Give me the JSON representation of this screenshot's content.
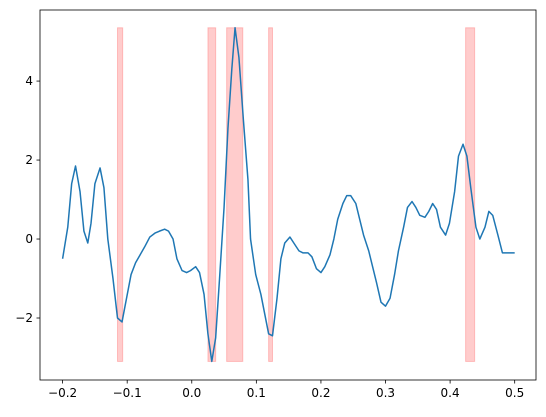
{
  "chart_data": {
    "type": "line",
    "x": [
      -0.2,
      -0.192,
      -0.186,
      -0.18,
      -0.173,
      -0.167,
      -0.161,
      -0.156,
      -0.15,
      -0.142,
      -0.136,
      -0.13,
      -0.122,
      -0.115,
      -0.108,
      -0.101,
      -0.094,
      -0.087,
      -0.08,
      -0.073,
      -0.065,
      -0.057,
      -0.05,
      -0.042,
      -0.036,
      -0.029,
      -0.023,
      -0.015,
      -0.008,
      -0.002,
      0.006,
      0.012,
      0.019,
      0.025,
      0.031,
      0.037,
      0.043,
      0.05,
      0.056,
      0.062,
      0.067,
      0.073,
      0.08,
      0.087,
      0.091,
      0.099,
      0.107,
      0.113,
      0.119,
      0.125,
      0.132,
      0.138,
      0.144,
      0.152,
      0.158,
      0.166,
      0.172,
      0.18,
      0.186,
      0.193,
      0.2,
      0.206,
      0.214,
      0.22,
      0.226,
      0.234,
      0.24,
      0.246,
      0.254,
      0.26,
      0.266,
      0.274,
      0.28,
      0.286,
      0.293,
      0.3,
      0.307,
      0.314,
      0.32,
      0.328,
      0.334,
      0.341,
      0.347,
      0.353,
      0.361,
      0.367,
      0.373,
      0.379,
      0.385,
      0.393,
      0.399,
      0.407,
      0.413,
      0.42,
      0.426,
      0.432,
      0.44,
      0.446,
      0.454,
      0.46,
      0.466,
      0.474,
      0.481,
      0.488,
      0.5
    ],
    "series": [
      {
        "color": "#1f77b4",
        "values": [
          -0.5,
          0.3,
          1.4,
          1.85,
          1.2,
          0.2,
          -0.1,
          0.4,
          1.4,
          1.8,
          1.3,
          0.0,
          -1.0,
          -2.0,
          -2.1,
          -1.5,
          -0.9,
          -0.6,
          -0.4,
          -0.2,
          0.05,
          0.15,
          0.2,
          0.25,
          0.2,
          0.0,
          -0.5,
          -0.8,
          -0.85,
          -0.8,
          -0.7,
          -0.85,
          -1.4,
          -2.4,
          -3.1,
          -2.5,
          -1.0,
          0.8,
          2.8,
          4.3,
          5.35,
          4.6,
          3.0,
          1.5,
          0.0,
          -0.9,
          -1.4,
          -1.9,
          -2.4,
          -2.45,
          -1.5,
          -0.5,
          -0.1,
          0.05,
          -0.1,
          -0.3,
          -0.35,
          -0.35,
          -0.45,
          -0.75,
          -0.85,
          -0.7,
          -0.4,
          0.0,
          0.5,
          0.9,
          1.1,
          1.1,
          0.9,
          0.5,
          0.1,
          -0.3,
          -0.7,
          -1.1,
          -1.6,
          -1.7,
          -1.5,
          -0.9,
          -0.3,
          0.3,
          0.8,
          0.95,
          0.8,
          0.6,
          0.55,
          0.7,
          0.9,
          0.75,
          0.3,
          0.1,
          0.4,
          1.2,
          2.1,
          2.4,
          2.1,
          1.3,
          0.3,
          0.0,
          0.3,
          0.7,
          0.6,
          0.1,
          -0.35,
          -0.35,
          -0.35
        ]
      }
    ],
    "spans": [
      [
        -0.115,
        -0.107
      ],
      [
        0.025,
        0.037
      ],
      [
        0.054,
        0.079
      ],
      [
        0.119,
        0.125
      ],
      [
        0.424,
        0.438
      ]
    ],
    "span_color": "#ff0000",
    "xlim": [
      -0.235,
      0.533
    ],
    "ylim": [
      -3.57,
      5.8
    ],
    "xticks": [
      {
        "value": -0.2,
        "label": "−0.2"
      },
      {
        "value": -0.1,
        "label": "−0.1"
      },
      {
        "value": 0.0,
        "label": "0.0"
      },
      0.1,
      0.2,
      0.3,
      0.4,
      0.5
    ],
    "yticks": [
      {
        "value": -2,
        "label": "−2"
      },
      0,
      2,
      4
    ]
  }
}
